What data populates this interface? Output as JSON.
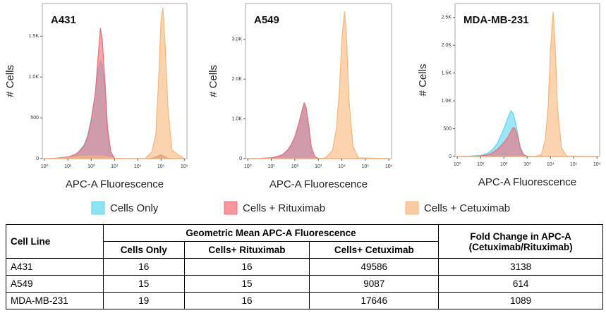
{
  "chart_data": [
    {
      "type": "area",
      "title": "A431",
      "x_label": "APC-A Fluorescence",
      "y_label": "# Cells",
      "log_x": true,
      "xlim": [
        0.8,
        1300000
      ],
      "xticks": [
        {
          "value": 1,
          "label": "10⁰"
        },
        {
          "value": 10,
          "label": "10¹"
        },
        {
          "value": 100,
          "label": "10²"
        },
        {
          "value": 1000,
          "label": "10³"
        },
        {
          "value": 10000,
          "label": "10⁴"
        },
        {
          "value": 100000,
          "label": "10⁵"
        },
        {
          "value": 1000000,
          "label": "10⁶"
        }
      ],
      "ylim": [
        0,
        1900
      ],
      "yticks": [
        0,
        500,
        {
          "value": 1000,
          "label": "1.0K"
        },
        {
          "value": 1500,
          "label": "1.5K"
        }
      ],
      "x": [
        1,
        3,
        10,
        20,
        30,
        50,
        70,
        100,
        150,
        200,
        250,
        300,
        400,
        500,
        700,
        1000,
        2000,
        5000,
        10000,
        20000,
        40000,
        60000,
        80000,
        100000,
        120000,
        150000,
        200000,
        300000,
        1000000
      ],
      "series": [
        {
          "name": "Cells Only",
          "color": "#5cd6f2",
          "values": [
            0,
            5,
            20,
            50,
            90,
            170,
            280,
            480,
            800,
            1100,
            1200,
            1150,
            800,
            350,
            70,
            5,
            0,
            0,
            0,
            0,
            5,
            20,
            40,
            50,
            40,
            20,
            5,
            0,
            0
          ]
        },
        {
          "name": "Cells + Rituximab",
          "color": "#f26b78",
          "values": [
            0,
            5,
            20,
            50,
            80,
            160,
            260,
            450,
            800,
            1250,
            1600,
            1450,
            900,
            400,
            80,
            5,
            0,
            0,
            0,
            0,
            5,
            15,
            30,
            40,
            30,
            15,
            5,
            0,
            0
          ]
        },
        {
          "name": "Cells + Cetuximab",
          "color": "#f8b579",
          "values": [
            0,
            2,
            10,
            20,
            25,
            30,
            30,
            30,
            30,
            30,
            30,
            30,
            25,
            20,
            10,
            3,
            0,
            0,
            0,
            0,
            80,
            300,
            1000,
            1700,
            1850,
            1400,
            600,
            100,
            0
          ]
        }
      ]
    },
    {
      "type": "area",
      "title": "A549",
      "x_label": "APC-A Fluorescence",
      "y_label": "# Cells",
      "log_x": true,
      "xlim": [
        0.8,
        1300000
      ],
      "xticks": [
        {
          "value": 1,
          "label": "10⁰"
        },
        {
          "value": 10,
          "label": "10¹"
        },
        {
          "value": 100,
          "label": "10²"
        },
        {
          "value": 1000,
          "label": "10³"
        },
        {
          "value": 10000,
          "label": "10⁴"
        },
        {
          "value": 100000,
          "label": "10⁵"
        },
        {
          "value": 1000000,
          "label": "10⁶"
        }
      ],
      "ylim": [
        0,
        3900
      ],
      "yticks": [
        0,
        {
          "value": 1000,
          "label": "1.0K"
        },
        {
          "value": 2000,
          "label": "2.0K"
        },
        {
          "value": 3000,
          "label": "3.0K"
        }
      ],
      "x": [
        1,
        3,
        10,
        20,
        30,
        50,
        70,
        100,
        150,
        200,
        250,
        300,
        400,
        500,
        700,
        1000,
        2000,
        4000,
        6000,
        8000,
        10000,
        13000,
        16000,
        20000,
        30000,
        50000,
        1000000
      ],
      "series": [
        {
          "color": "#5cd6f2",
          "values": [
            0,
            5,
            20,
            55,
            95,
            210,
            340,
            530,
            880,
            1180,
            1380,
            1280,
            780,
            290,
            55,
            5,
            0,
            0,
            0,
            0,
            0,
            0,
            0,
            0,
            0,
            0,
            0
          ]
        },
        {
          "color": "#f26b78",
          "values": [
            0,
            5,
            20,
            60,
            100,
            220,
            350,
            550,
            900,
            1200,
            1400,
            1300,
            800,
            300,
            60,
            5,
            0,
            0,
            0,
            0,
            0,
            0,
            0,
            0,
            0,
            0,
            0
          ]
        },
        {
          "color": "#f8b579",
          "values": [
            0,
            0,
            0,
            0,
            0,
            0,
            0,
            0,
            0,
            0,
            0,
            0,
            0,
            0,
            0,
            0,
            20,
            200,
            800,
            1800,
            3000,
            3700,
            3000,
            1500,
            300,
            20,
            0
          ]
        }
      ]
    },
    {
      "type": "area",
      "title": "MDA-MB-231",
      "x_label": "APC-A Fluorescence",
      "y_label": "# Cells",
      "log_x": true,
      "xlim": [
        0.8,
        1300000
      ],
      "xticks": [
        {
          "value": 1,
          "label": "10⁰"
        },
        {
          "value": 10,
          "label": "10¹"
        },
        {
          "value": 100,
          "label": "10²"
        },
        {
          "value": 1000,
          "label": "10³"
        },
        {
          "value": 10000,
          "label": "10⁴"
        },
        {
          "value": 100000,
          "label": "10⁵"
        },
        {
          "value": 1000000,
          "label": "10⁶"
        }
      ],
      "ylim": [
        0,
        2750
      ],
      "yticks": [
        0,
        500,
        {
          "value": 1000,
          "label": "1.0K"
        },
        {
          "value": 1500,
          "label": "1.5K"
        },
        {
          "value": 2000,
          "label": "2.0K"
        },
        {
          "value": 2500,
          "label": "2.5K"
        }
      ],
      "x": [
        1,
        3,
        10,
        20,
        30,
        50,
        70,
        100,
        150,
        200,
        250,
        300,
        400,
        500,
        700,
        1000,
        2000,
        4000,
        6000,
        8000,
        10000,
        13000,
        16000,
        20000,
        30000,
        50000,
        1000000
      ],
      "series": [
        {
          "color": "#5cd6f2",
          "values": [
            0,
            5,
            20,
            60,
            110,
            220,
            350,
            500,
            700,
            820,
            780,
            650,
            400,
            180,
            40,
            5,
            0,
            0,
            0,
            0,
            0,
            0,
            0,
            0,
            0,
            0,
            0
          ]
        },
        {
          "color": "#f26b78",
          "values": [
            0,
            3,
            10,
            30,
            60,
            120,
            180,
            250,
            350,
            450,
            520,
            500,
            350,
            150,
            30,
            3,
            0,
            0,
            0,
            0,
            0,
            0,
            0,
            0,
            0,
            0,
            0
          ]
        },
        {
          "color": "#f8b579",
          "values": [
            0,
            0,
            0,
            0,
            0,
            0,
            0,
            0,
            0,
            0,
            0,
            0,
            0,
            0,
            0,
            0,
            0,
            30,
            300,
            900,
            1900,
            2600,
            2000,
            900,
            150,
            10,
            0
          ]
        }
      ]
    }
  ],
  "table": {
    "header": {
      "cell_line": "Cell Line",
      "group": "Geometric Mean APC-A Fluorescence",
      "fold": [
        "Fold Change in APC-A",
        "(Cetuximab/Rituximab)"
      ],
      "columns": [
        "Cells Only",
        "Cells+ Rituximab",
        "Cells+ Cetuximab"
      ]
    },
    "rows": [
      [
        "A431",
        16,
        16,
        49586,
        3138
      ],
      [
        "A549",
        15,
        15,
        9087,
        614
      ],
      [
        "MDA-MB-231",
        19,
        16,
        17646,
        1089
      ]
    ]
  }
}
